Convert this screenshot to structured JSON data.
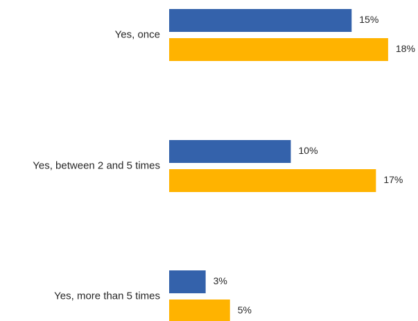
{
  "chart_data": {
    "type": "bar",
    "orientation": "horizontal",
    "categories": [
      "Yes, once",
      "Yes, between 2 and 5 times",
      "Yes, more than 5 times"
    ],
    "series": [
      {
        "values": [
          15,
          10,
          3
        ],
        "color": "#3462ab"
      },
      {
        "values": [
          18,
          17,
          5
        ],
        "color": "#ffb300"
      }
    ],
    "value_labels": [
      [
        "15%",
        "10%",
        "3%"
      ],
      [
        "18%",
        "17%",
        "5%"
      ]
    ],
    "unit": "%",
    "title": "",
    "xlabel": "",
    "ylabel": "",
    "xlim": [
      0,
      18
    ],
    "grid": false,
    "legend": "none"
  }
}
